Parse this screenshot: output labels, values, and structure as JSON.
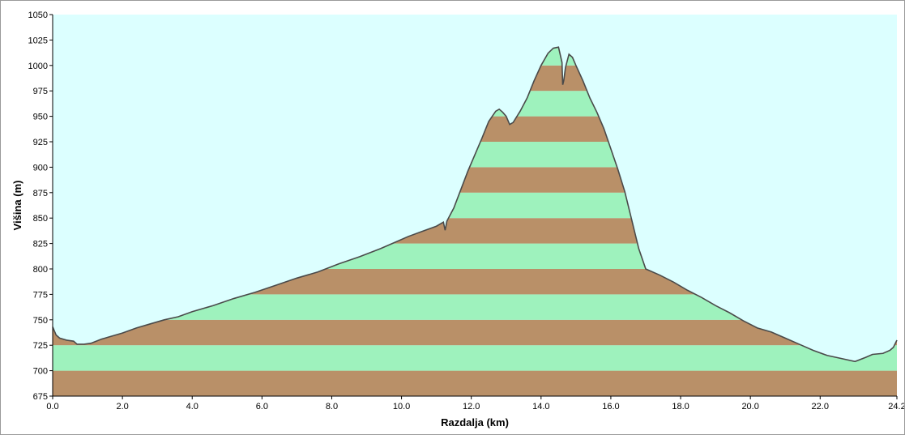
{
  "chart_data": {
    "type": "area",
    "xlabel": "Razdalja  (km)",
    "ylabel": "Višina  (m)",
    "xlim": [
      0,
      24.2
    ],
    "ylim": [
      675,
      1050
    ],
    "x_ticks": [
      "0.0",
      "2.0",
      "4.0",
      "6.0",
      "8.0",
      "10.0",
      "12.0",
      "14.0",
      "16.0",
      "18.0",
      "20.0",
      "22.0",
      "24.2"
    ],
    "x_tick_values": [
      0,
      2,
      4,
      6,
      8,
      10,
      12,
      14,
      16,
      18,
      20,
      22,
      24.2
    ],
    "y_ticks": [
      "675",
      "700",
      "725",
      "750",
      "775",
      "800",
      "825",
      "850",
      "875",
      "900",
      "925",
      "950",
      "975",
      "1000",
      "1025",
      "1050"
    ],
    "y_tick_values": [
      675,
      700,
      725,
      750,
      775,
      800,
      825,
      850,
      875,
      900,
      925,
      950,
      975,
      1000,
      1025,
      1050
    ],
    "grid": false,
    "colors": {
      "sky": "#dcffff",
      "band_brown": "#b99068",
      "band_green": "#9ef2bd",
      "outline": "#4a4a4a",
      "axis": "#000000"
    },
    "band_step": 25,
    "series": [
      {
        "x": [
          0,
          0.1,
          0.2,
          0.4,
          0.6,
          0.7,
          0.9,
          1.1,
          1.4,
          1.6,
          2.0,
          2.4,
          2.8,
          3.2,
          3.6,
          4.0,
          4.6,
          5.2,
          5.8,
          6.4,
          7.0,
          7.6,
          8.2,
          8.8,
          9.4,
          9.8,
          10.2,
          10.6,
          11.0,
          11.2,
          11.25,
          11.3,
          11.5,
          11.7,
          11.9,
          12.1,
          12.3,
          12.5,
          12.7,
          12.8,
          12.9,
          13.0,
          13.1,
          13.2,
          13.4,
          13.6,
          13.8,
          14.0,
          14.2,
          14.35,
          14.5,
          14.6,
          14.62,
          14.65,
          14.7,
          14.8,
          14.9,
          15.0,
          15.2,
          15.4,
          15.6,
          15.8,
          16.0,
          16.2,
          16.4,
          16.6,
          16.8,
          17.0,
          17.4,
          17.8,
          18.2,
          18.6,
          19.0,
          19.4,
          19.8,
          20.2,
          20.6,
          21.0,
          21.4,
          21.8,
          22.2,
          22.6,
          23.0,
          23.3,
          23.5,
          23.8,
          24.0,
          24.1,
          24.2
        ],
        "y": [
          743,
          735,
          732,
          730,
          729,
          726,
          726,
          727,
          731,
          733,
          737,
          742,
          746,
          750,
          753,
          758,
          764,
          771,
          777,
          784,
          791,
          797,
          805,
          812,
          820,
          826,
          832,
          837,
          842,
          846,
          838,
          847,
          860,
          878,
          896,
          912,
          928,
          945,
          955,
          957,
          954,
          950,
          942,
          944,
          955,
          968,
          985,
          1000,
          1012,
          1017,
          1018,
          1003,
          981,
          985,
          998,
          1011,
          1008,
          1000,
          985,
          968,
          954,
          938,
          918,
          898,
          876,
          848,
          820,
          800,
          794,
          787,
          779,
          772,
          764,
          757,
          749,
          742,
          738,
          732,
          726,
          720,
          715,
          712,
          709,
          713,
          716,
          717,
          720,
          723,
          730
        ]
      }
    ]
  }
}
